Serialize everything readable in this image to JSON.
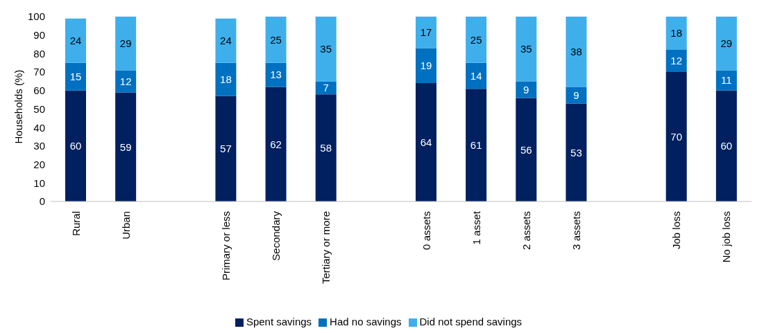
{
  "chart_data": {
    "type": "bar",
    "stacked": true,
    "ylabel": "Households (%)",
    "categories": [
      "Rural",
      "Urban",
      null,
      "Primary or less",
      "Secondary",
      "Tertiary or more",
      null,
      "0 assets",
      "1 asset",
      "2 assets",
      "3 assets",
      null,
      "Job loss",
      "No job loss"
    ],
    "series": [
      {
        "name": "Spent savings",
        "color": "#002060",
        "values": [
          60,
          59,
          null,
          57,
          62,
          58,
          null,
          64,
          61,
          56,
          53,
          null,
          70,
          60
        ]
      },
      {
        "name": "Had no savings",
        "color": "#0070c0",
        "values": [
          15,
          12,
          null,
          18,
          13,
          7,
          null,
          19,
          14,
          9,
          9,
          null,
          12,
          11
        ]
      },
      {
        "name": "Did not spend savings",
        "color": "#3fafec",
        "values": [
          24,
          29,
          null,
          24,
          25,
          35,
          null,
          17,
          25,
          35,
          38,
          null,
          18,
          29
        ]
      }
    ],
    "ylim": [
      0,
      100
    ],
    "yticks": [
      0,
      10,
      20,
      30,
      40,
      50,
      60,
      70,
      80,
      90,
      100
    ],
    "legend": "bottom",
    "data_labels": true
  }
}
